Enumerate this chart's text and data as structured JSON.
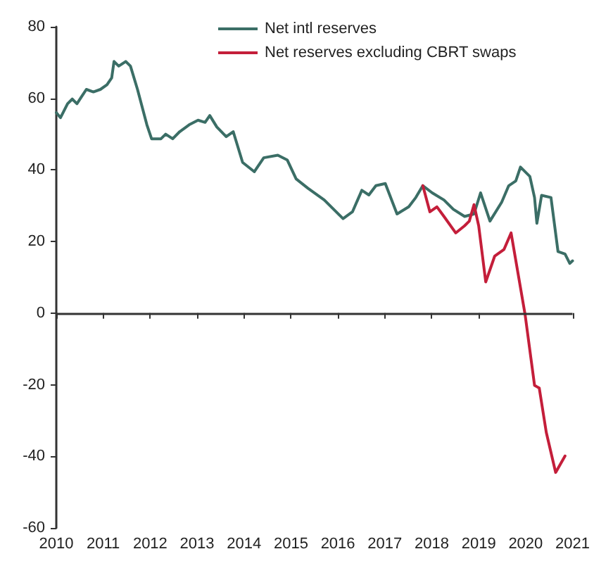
{
  "chart_data": {
    "type": "line",
    "xlim": [
      2010,
      2021
    ],
    "xticks": [
      2010,
      2011,
      2012,
      2013,
      2014,
      2015,
      2016,
      2017,
      2018,
      2019,
      2020,
      2021
    ],
    "ylim": [
      -60,
      80
    ],
    "yticks": [
      -60,
      -40,
      -20,
      0,
      20,
      40,
      60,
      80
    ],
    "grid": false,
    "ref_lines": [
      {
        "axis": "y",
        "value": 0,
        "color": "#333333"
      }
    ],
    "legend": "top",
    "marker": "none",
    "line_style": "solid",
    "series": [
      {
        "name": "Net intl reserves",
        "color": "#3b6e66",
        "x": [
          2010.0,
          2010.09,
          2010.24,
          2010.34,
          2010.44,
          2010.54,
          2010.64,
          2010.79,
          2010.94,
          2011.08,
          2011.18,
          2011.23,
          2011.33,
          2011.48,
          2011.58,
          2011.73,
          2011.93,
          2012.03,
          2012.23,
          2012.33,
          2012.48,
          2012.63,
          2012.83,
          2013.02,
          2013.17,
          2013.27,
          2013.42,
          2013.62,
          2013.77,
          2013.97,
          2014.22,
          2014.42,
          2014.72,
          2014.92,
          2015.11,
          2015.36,
          2015.71,
          2016.11,
          2016.31,
          2016.51,
          2016.66,
          2016.81,
          2017.01,
          2017.26,
          2017.51,
          2017.66,
          2017.81,
          2018.01,
          2018.26,
          2018.46,
          2018.7,
          2018.9,
          2019.04,
          2019.24,
          2019.49,
          2019.64,
          2019.79,
          2019.89,
          2020.09,
          2020.19,
          2020.24,
          2020.34,
          2020.54,
          2020.69,
          2020.84,
          2020.94,
          2021.0
        ],
        "values": [
          56,
          54.6,
          58.5,
          59.8,
          58.5,
          60.5,
          62.5,
          61.8,
          62.5,
          63.8,
          65.7,
          70.3,
          69,
          70.3,
          69,
          62.5,
          52.6,
          48.7,
          48.7,
          50,
          48.7,
          50.7,
          52.6,
          53.9,
          53.3,
          55.2,
          52,
          49.3,
          50.7,
          42.1,
          39.5,
          43.4,
          44.1,
          42.8,
          37.5,
          34.9,
          31.6,
          26.4,
          28.3,
          34.3,
          33,
          35.6,
          36.2,
          27.7,
          29.7,
          32.3,
          35.6,
          33.6,
          31.6,
          29,
          27,
          27.7,
          33.6,
          25.7,
          31,
          35.6,
          36.9,
          40.8,
          38.2,
          32.3,
          25.1,
          32.9,
          32.3,
          17.2,
          16.5,
          13.9,
          14.6
        ]
      },
      {
        "name": "Net reserves excluding CBRT swaps",
        "color": "#c41e3a",
        "x": [
          2017.81,
          2017.96,
          2018.11,
          2018.26,
          2018.51,
          2018.7,
          2018.8,
          2018.9,
          2019.0,
          2019.15,
          2019.34,
          2019.54,
          2019.69,
          2019.99,
          2020.19,
          2020.29,
          2020.44,
          2020.64,
          2020.84
        ],
        "values": [
          35.6,
          28.3,
          29.7,
          27,
          22.4,
          24.4,
          25.7,
          30.3,
          24.4,
          8.7,
          15.9,
          17.8,
          22.4,
          -0.5,
          -20.2,
          -20.9,
          -33.3,
          -44.5,
          -39.9
        ]
      }
    ]
  }
}
